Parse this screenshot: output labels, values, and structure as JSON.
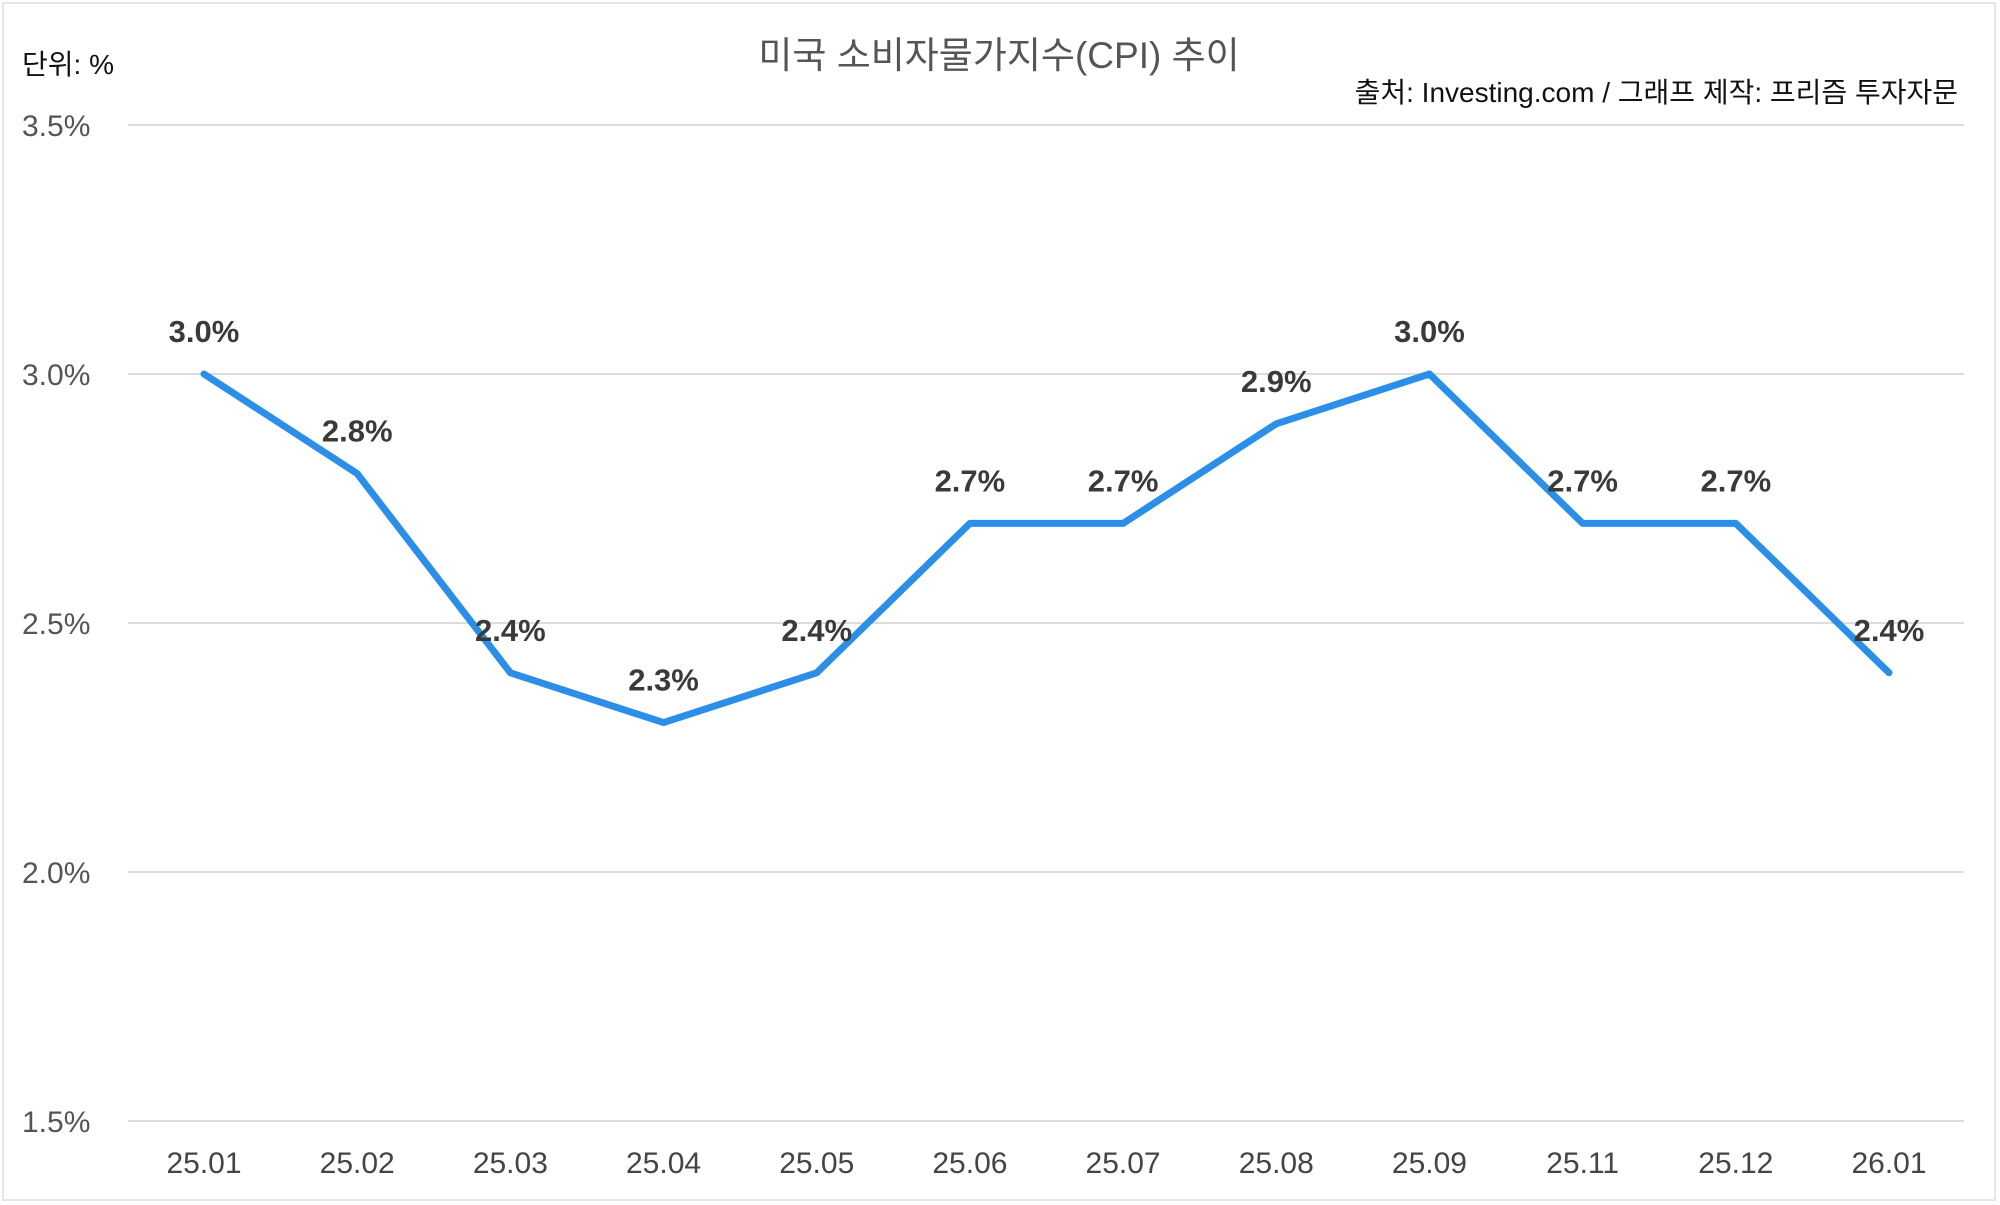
{
  "chart_data": {
    "type": "line",
    "title": "미국 소비자물가지수(CPI) 추이",
    "unit_label": "단위: %",
    "source_note": "출처: Investing.com / 그래프 제작: 프리즘 투자자문",
    "categories": [
      "25.01",
      "25.02",
      "25.03",
      "25.04",
      "25.05",
      "25.06",
      "25.07",
      "25.08",
      "25.09",
      "25.11",
      "25.12",
      "26.01"
    ],
    "series": [
      {
        "name": "CPI",
        "values": [
          3.0,
          2.8,
          2.4,
          2.3,
          2.4,
          2.7,
          2.7,
          2.9,
          3.0,
          2.7,
          2.7,
          2.4
        ],
        "color": "#2b8fe8"
      }
    ],
    "data_labels": [
      "3.0%",
      "2.8%",
      "2.4%",
      "2.3%",
      "2.4%",
      "2.7%",
      "2.7%",
      "2.9%",
      "3.0%",
      "2.7%",
      "2.7%",
      "2.4%"
    ],
    "yticks": [
      1.5,
      2.0,
      2.5,
      3.0,
      3.5
    ],
    "ytick_labels": [
      "1.5%",
      "2.0%",
      "2.5%",
      "3.0%",
      "3.5%"
    ],
    "ylim": [
      1.5,
      3.5
    ],
    "xlabel": "",
    "ylabel": "",
    "grid": true,
    "legend": "none"
  }
}
